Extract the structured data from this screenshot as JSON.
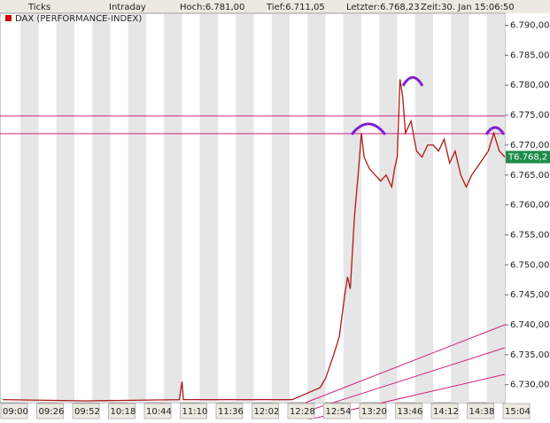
{
  "header": {
    "tabs": [
      "Ticks",
      "Intraday"
    ],
    "high": "Hoch:6.781,00",
    "low": "Tief:6.711,05",
    "last": "Letzter:6.768,23",
    "time": "Zeit:30. Jan 15:06:50"
  },
  "chart_data": {
    "type": "line",
    "title": "DAX (PERFORMANCE-INDEX)",
    "color": "#b01818",
    "x": [
      "09:00",
      "10:00",
      "11:08",
      "11:10",
      "11:11",
      "12:30",
      "12:40",
      "12:50",
      "12:54",
      "13:00",
      "13:04",
      "13:08",
      "13:10",
      "13:12",
      "13:15",
      "13:18",
      "13:20",
      "13:22",
      "13:26",
      "13:30",
      "13:34",
      "13:38",
      "13:42",
      "13:44",
      "13:46",
      "13:48",
      "13:50",
      "13:52",
      "13:56",
      "14:00",
      "14:04",
      "14:08",
      "14:12",
      "14:16",
      "14:20",
      "14:24",
      "14:28",
      "14:32",
      "14:36",
      "14:40",
      "14:46",
      "14:52",
      "14:56",
      "15:00",
      "15:04"
    ],
    "values": [
      6727.5,
      6727.3,
      6727.5,
      6730.5,
      6727.5,
      6727.5,
      6728.5,
      6729.5,
      6731,
      6735,
      6738,
      6745,
      6748,
      6746,
      6758,
      6766,
      6772,
      6768,
      6766,
      6765,
      6764,
      6765,
      6763,
      6766,
      6768,
      6781,
      6778,
      6772,
      6774,
      6769,
      6768,
      6770,
      6770,
      6769,
      6771,
      6767,
      6769,
      6765,
      6763,
      6765,
      6767,
      6769,
      6772,
      6769,
      6768
    ],
    "xlim": [
      "09:00",
      "15:04"
    ],
    "xticks": [
      "09:00",
      "09:26",
      "09:52",
      "10:18",
      "10:44",
      "11:10",
      "11:36",
      "12:02",
      "12:28",
      "12:54",
      "13:20",
      "13:46",
      "14:12",
      "14:38",
      "15:04"
    ],
    "ylim": [
      6727,
      6792
    ],
    "yticks": [
      {
        "value": 6790,
        "label": "6.790,00"
      },
      {
        "value": 6785,
        "label": "6.785,00"
      },
      {
        "value": 6780,
        "label": "6.780,00"
      },
      {
        "value": 6775,
        "label": "6.775,00"
      },
      {
        "value": 6770,
        "label": "6.770,00"
      },
      {
        "value": 6765,
        "label": "6.765,00"
      },
      {
        "value": 6760,
        "label": "6.760,00"
      },
      {
        "value": 6755,
        "label": "6.755,00"
      },
      {
        "value": 6750,
        "label": "6.750,00"
      },
      {
        "value": 6745,
        "label": "6.745,00"
      },
      {
        "value": 6740,
        "label": "6.740,00"
      },
      {
        "value": 6735,
        "label": "6.735,00"
      },
      {
        "value": 6730,
        "label": "6.730,00"
      }
    ],
    "last_label": "T6.768,2"
  }
}
